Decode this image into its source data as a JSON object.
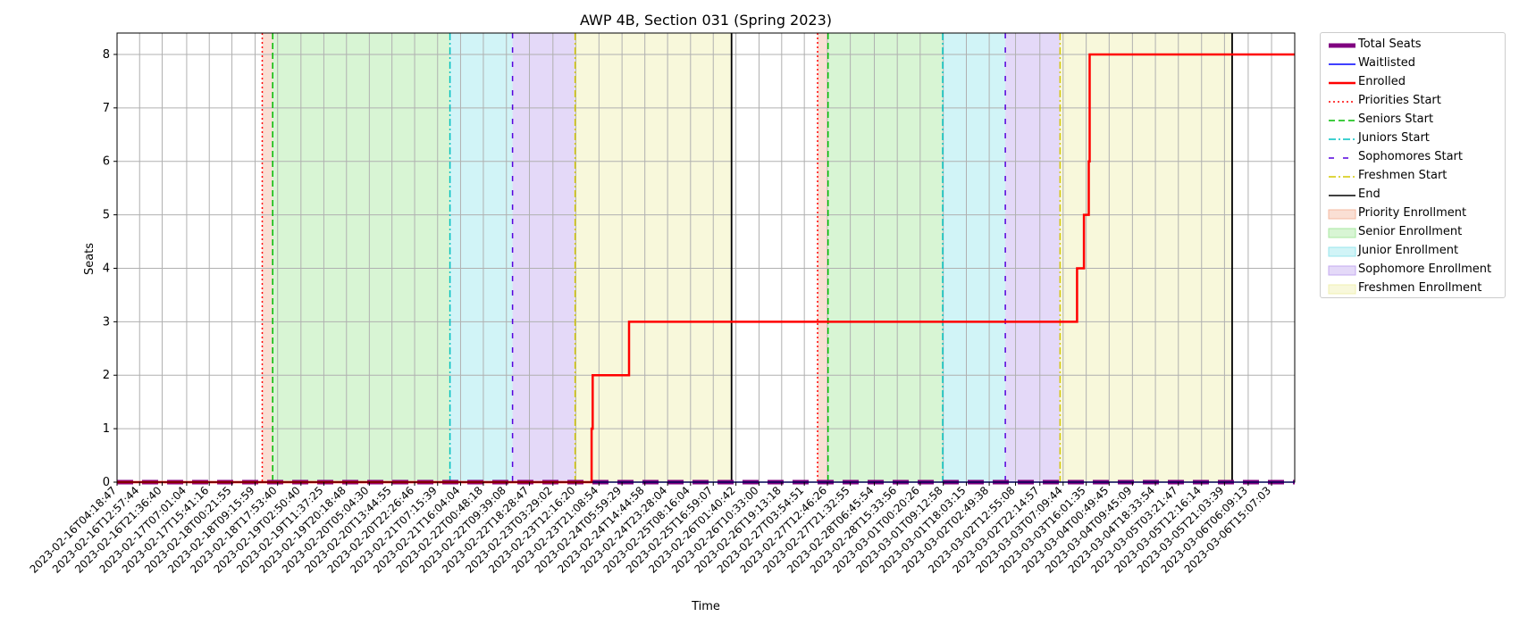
{
  "chart_data": {
    "type": "line",
    "title": "AWP 4B, Section 031 (Spring 2023)",
    "xlabel": "Time",
    "ylabel": "Seats",
    "ylim": [
      0,
      8.4
    ],
    "yticks": [
      0,
      1,
      2,
      3,
      4,
      5,
      6,
      7,
      8
    ],
    "grid": true,
    "legend_position": "outside-right-top",
    "x_ticks": [
      "2023-02-16T04:18:47",
      "2023-02-16T12:57:44",
      "2023-02-16T21:36:40",
      "2023-02-17T07:01:04",
      "2023-02-17T15:41:16",
      "2023-02-18T00:21:55",
      "2023-02-18T09:15:59",
      "2023-02-18T17:53:40",
      "2023-02-19T02:50:40",
      "2023-02-19T11:37:25",
      "2023-02-19T20:18:48",
      "2023-02-20T05:04:30",
      "2023-02-20T13:44:55",
      "2023-02-20T22:26:46",
      "2023-02-21T07:15:39",
      "2023-02-21T16:04:04",
      "2023-02-22T00:48:18",
      "2023-02-22T09:39:08",
      "2023-02-22T18:28:47",
      "2023-02-23T03:29:02",
      "2023-02-23T12:16:20",
      "2023-02-23T21:08:54",
      "2023-02-24T05:59:29",
      "2023-02-24T14:44:58",
      "2023-02-24T23:28:04",
      "2023-02-25T08:16:04",
      "2023-02-25T16:59:07",
      "2023-02-26T01:40:42",
      "2023-02-26T10:33:00",
      "2023-02-26T19:13:18",
      "2023-02-27T03:54:51",
      "2023-02-27T12:46:26",
      "2023-02-27T21:32:55",
      "2023-02-28T06:45:54",
      "2023-02-28T15:33:56",
      "2023-03-01T00:20:26",
      "2023-03-01T09:12:58",
      "2023-03-01T18:03:15",
      "2023-03-02T02:49:38",
      "2023-03-02T12:55:08",
      "2023-03-02T22:14:57",
      "2023-03-03T07:09:44",
      "2023-03-03T16:01:35",
      "2023-03-04T00:49:45",
      "2023-03-04T09:45:09",
      "2023-03-04T18:33:54",
      "2023-03-05T03:21:47",
      "2023-03-05T12:16:14",
      "2023-03-05T21:03:39",
      "2023-03-06T06:09:13",
      "2023-03-06T15:07:03"
    ],
    "x_range": [
      "2023-02-16T04:18:47",
      "2023-03-07T00:00:00"
    ],
    "series": [
      {
        "name": "Total Seats",
        "style": "thick",
        "color": "#800080",
        "points": [
          [
            "2023-02-16T04:18:47",
            0
          ],
          [
            "2023-03-07T00:00:00",
            0
          ]
        ]
      },
      {
        "name": "Waitlisted",
        "style": "solid",
        "color": "#0000ff",
        "points": [
          [
            "2023-02-16T04:18:47",
            0
          ],
          [
            "2023-03-07T00:00:00",
            0
          ]
        ]
      },
      {
        "name": "Enrolled",
        "style": "solid-thick",
        "color": "#ff0000",
        "points": [
          [
            "2023-02-16T04:18:47",
            0
          ],
          [
            "2023-02-23T18:20:00",
            0
          ],
          [
            "2023-02-23T18:20:00",
            1
          ],
          [
            "2023-02-23T18:45:00",
            1
          ],
          [
            "2023-02-23T18:45:00",
            2
          ],
          [
            "2023-02-24T08:40:00",
            2
          ],
          [
            "2023-02-24T08:40:00",
            3
          ],
          [
            "2023-03-03T12:30:00",
            3
          ],
          [
            "2023-03-03T12:30:00",
            4
          ],
          [
            "2023-03-03T15:10:00",
            4
          ],
          [
            "2023-03-03T15:10:00",
            5
          ],
          [
            "2023-03-03T17:00:00",
            5
          ],
          [
            "2023-03-03T17:00:00",
            6
          ],
          [
            "2023-03-03T17:20:00",
            6
          ],
          [
            "2023-03-03T17:20:00",
            8
          ],
          [
            "2023-03-07T00:00:00",
            8
          ]
        ]
      }
    ],
    "vlines": [
      {
        "name": "Priorities Start",
        "style": "dotted",
        "color": "#ff0000",
        "times": [
          "2023-02-18T12:00:00",
          "2023-02-27T09:00:00"
        ]
      },
      {
        "name": "Seniors Start",
        "style": "dashed",
        "color": "#00bb00",
        "times": [
          "2023-02-18T16:00:00",
          "2023-02-27T13:00:00"
        ]
      },
      {
        "name": "Juniors Start",
        "style": "dashdot",
        "color": "#00c0c0",
        "times": [
          "2023-02-21T12:00:00",
          "2023-03-01T09:00:00"
        ]
      },
      {
        "name": "Sophomores Start",
        "style": "loosedash",
        "color": "#5500dd",
        "times": [
          "2023-02-22T12:00:00",
          "2023-03-02T09:00:00"
        ]
      },
      {
        "name": "Freshmen Start",
        "style": "dashdot",
        "color": "#d4c800",
        "times": [
          "2023-02-23T12:00:00",
          "2023-03-03T06:00:00"
        ]
      },
      {
        "name": "End",
        "style": "solid",
        "color": "#000000",
        "times": [
          "2023-02-26T00:00:00",
          "2023-03-06T00:00:00"
        ]
      }
    ],
    "spans": [
      {
        "name": "Priority Enrollment",
        "color": "#f4b8a0",
        "ranges": [
          [
            "2023-02-18T12:00:00",
            "2023-02-18T16:00:00"
          ],
          [
            "2023-02-27T09:00:00",
            "2023-02-27T13:00:00"
          ]
        ]
      },
      {
        "name": "Senior Enrollment",
        "color": "#a8e8a0",
        "ranges": [
          [
            "2023-02-18T16:00:00",
            "2023-02-21T12:00:00"
          ],
          [
            "2023-02-27T13:00:00",
            "2023-03-01T09:00:00"
          ]
        ]
      },
      {
        "name": "Junior Enrollment",
        "color": "#98e6ee",
        "ranges": [
          [
            "2023-02-21T12:00:00",
            "2023-02-22T12:00:00"
          ],
          [
            "2023-03-01T09:00:00",
            "2023-03-02T09:00:00"
          ]
        ]
      },
      {
        "name": "Sophomore Enrollment",
        "color": "#c4aaf0",
        "ranges": [
          [
            "2023-02-22T12:00:00",
            "2023-02-23T12:00:00"
          ],
          [
            "2023-03-02T09:00:00",
            "2023-03-03T06:00:00"
          ]
        ]
      },
      {
        "name": "Freshmen Enrollment",
        "color": "#f0f0b0",
        "ranges": [
          [
            "2023-02-23T12:00:00",
            "2023-02-26T00:00:00"
          ],
          [
            "2023-03-03T06:00:00",
            "2023-03-06T00:00:00"
          ]
        ]
      }
    ]
  }
}
